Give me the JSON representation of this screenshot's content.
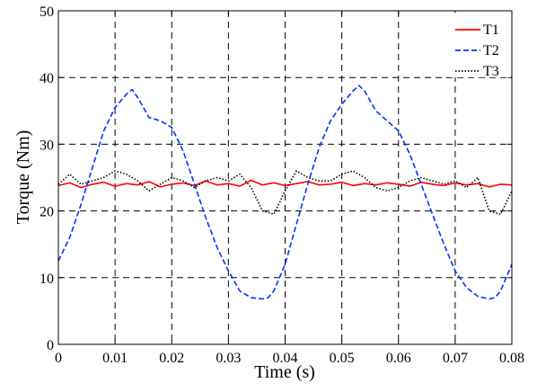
{
  "chart_data": {
    "type": "line",
    "title": "",
    "xlabel": "Time (s)",
    "ylabel": "Torque (Nm)",
    "xlim": [
      0,
      0.08
    ],
    "ylim": [
      0,
      50
    ],
    "x_ticks": [
      0,
      0.01,
      0.02,
      0.03,
      0.04,
      0.05,
      0.06,
      0.07,
      0.08
    ],
    "x_tick_labels": [
      "0",
      "0.01",
      "0.02",
      "0.03",
      "0.04",
      "0.05",
      "0.06",
      "0.07",
      "0.08"
    ],
    "y_ticks": [
      0,
      10,
      20,
      30,
      40,
      50
    ],
    "y_tick_labels": [
      "0",
      "10",
      "20",
      "30",
      "40",
      "50"
    ],
    "grid": true,
    "legend_position": "top-right",
    "series": [
      {
        "name": "T1",
        "color": "#ff0000",
        "dash": "solid",
        "x": [
          0,
          0.002,
          0.004,
          0.006,
          0.008,
          0.01,
          0.012,
          0.014,
          0.016,
          0.018,
          0.02,
          0.022,
          0.024,
          0.026,
          0.028,
          0.03,
          0.032,
          0.034,
          0.036,
          0.038,
          0.04,
          0.042,
          0.044,
          0.046,
          0.048,
          0.05,
          0.052,
          0.054,
          0.056,
          0.058,
          0.06,
          0.062,
          0.064,
          0.066,
          0.068,
          0.07,
          0.072,
          0.074,
          0.076,
          0.078,
          0.08
        ],
        "y": [
          23.8,
          24.2,
          23.5,
          24.0,
          24.3,
          23.7,
          24.1,
          23.9,
          24.4,
          23.6,
          24.0,
          24.2,
          23.8,
          24.5,
          23.9,
          24.1,
          23.7,
          24.6,
          23.9,
          24.2,
          23.8,
          24.1,
          24.4,
          23.9,
          24.0,
          24.3,
          23.8,
          24.1,
          23.9,
          24.2,
          24.0,
          23.7,
          24.3,
          24.0,
          23.8,
          24.2,
          23.9,
          24.1,
          23.6,
          24.0,
          23.9
        ]
      },
      {
        "name": "T2",
        "color": "#0033ff",
        "dash": "dashed",
        "x": [
          0,
          0.002,
          0.004,
          0.006,
          0.008,
          0.01,
          0.012,
          0.013,
          0.014,
          0.016,
          0.018,
          0.02,
          0.022,
          0.024,
          0.026,
          0.028,
          0.03,
          0.032,
          0.034,
          0.036,
          0.037,
          0.038,
          0.04,
          0.042,
          0.044,
          0.046,
          0.048,
          0.05,
          0.052,
          0.053,
          0.054,
          0.056,
          0.058,
          0.06,
          0.062,
          0.064,
          0.066,
          0.068,
          0.07,
          0.072,
          0.074,
          0.076,
          0.077,
          0.078,
          0.08
        ],
        "y": [
          12.5,
          16.0,
          21.0,
          26.5,
          32.0,
          35.5,
          37.5,
          38.2,
          37.0,
          34.0,
          33.5,
          32.5,
          29.0,
          24.0,
          19.0,
          14.5,
          11.0,
          8.0,
          7.0,
          6.8,
          7.0,
          8.0,
          12.0,
          18.0,
          24.0,
          29.5,
          33.5,
          36.0,
          38.0,
          38.8,
          38.0,
          35.0,
          33.5,
          32.0,
          28.5,
          24.0,
          19.5,
          15.0,
          11.0,
          8.5,
          7.2,
          6.8,
          7.0,
          8.0,
          12.0
        ]
      },
      {
        "name": "T3",
        "color": "#000000",
        "dash": "dotted",
        "x": [
          0,
          0.002,
          0.004,
          0.006,
          0.008,
          0.01,
          0.012,
          0.014,
          0.016,
          0.018,
          0.02,
          0.022,
          0.024,
          0.026,
          0.028,
          0.03,
          0.032,
          0.034,
          0.036,
          0.038,
          0.04,
          0.042,
          0.044,
          0.046,
          0.048,
          0.05,
          0.052,
          0.054,
          0.056,
          0.058,
          0.06,
          0.062,
          0.064,
          0.066,
          0.068,
          0.07,
          0.072,
          0.074,
          0.076,
          0.078,
          0.08
        ],
        "y": [
          24.0,
          25.5,
          24.0,
          24.5,
          25.0,
          26.0,
          25.5,
          24.5,
          23.0,
          24.0,
          25.0,
          24.5,
          23.5,
          24.5,
          25.0,
          24.5,
          25.5,
          23.5,
          20.0,
          19.5,
          23.0,
          26.0,
          25.0,
          24.5,
          24.5,
          25.5,
          26.0,
          25.0,
          23.5,
          23.0,
          23.5,
          24.5,
          25.0,
          24.5,
          24.0,
          24.5,
          23.5,
          25.0,
          20.0,
          19.5,
          23.0
        ]
      }
    ]
  }
}
